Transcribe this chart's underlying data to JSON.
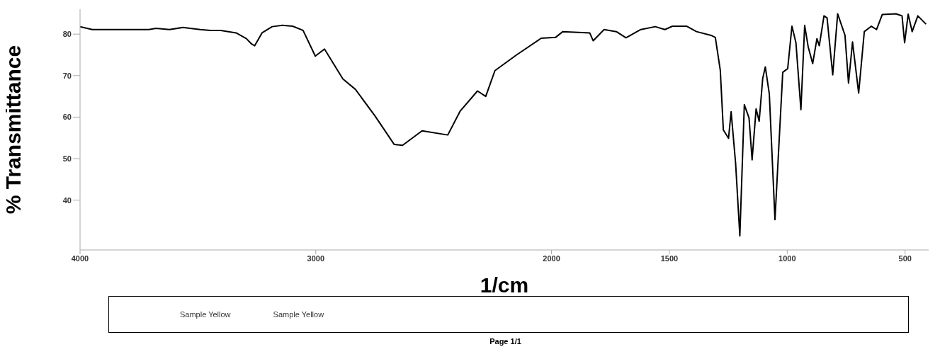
{
  "chart_data": {
    "type": "line",
    "xlabel": "1/cm",
    "ylabel": "% Transmittance",
    "x": [
      4000,
      3948,
      3708,
      3678,
      3621,
      3564,
      3490,
      3447,
      3403,
      3338,
      3294,
      3272,
      3259,
      3228,
      3185,
      3142,
      3098,
      3054,
      3002,
      2963,
      2885,
      2832,
      2749,
      2667,
      2632,
      2549,
      2440,
      2388,
      2314,
      2279,
      2240,
      2148,
      2044,
      1983,
      1952,
      1838,
      1823,
      1777,
      1725,
      1684,
      1621,
      1560,
      1519,
      1487,
      1426,
      1385,
      1323,
      1305,
      1284,
      1271,
      1249,
      1238,
      1219,
      1201,
      1182,
      1162,
      1149,
      1132,
      1119,
      1104,
      1093,
      1076,
      1052,
      1019,
      998,
      980,
      963,
      942,
      926,
      911,
      892,
      874,
      864,
      844,
      831,
      807,
      786,
      755,
      740,
      723,
      697,
      673,
      643,
      621,
      597,
      539,
      513,
      502,
      487,
      470,
      446,
      411
    ],
    "series": [
      {
        "color": "#000000",
        "values": [
          81.8,
          81.1,
          81.1,
          81.4,
          81.1,
          81.6,
          81.1,
          80.9,
          80.9,
          80.3,
          78.9,
          77.6,
          77.2,
          80.3,
          81.8,
          82.1,
          81.9,
          80.9,
          74.7,
          76.4,
          69.2,
          66.7,
          60.3,
          53.4,
          53.2,
          56.7,
          55.7,
          61.4,
          66.3,
          65.0,
          71.2,
          75.0,
          79.0,
          79.2,
          80.6,
          80.3,
          78.4,
          81.1,
          80.6,
          79.1,
          81.1,
          81.8,
          81.1,
          81.9,
          81.9,
          80.6,
          79.7,
          79.2,
          71.3,
          56.9,
          54.9,
          61.3,
          48.9,
          31.4,
          63.0,
          59.8,
          49.7,
          62.0,
          59.0,
          69.3,
          72.1,
          65.6,
          35.3,
          70.8,
          71.7,
          81.9,
          77.9,
          61.8,
          82.1,
          76.9,
          72.9,
          78.9,
          77.2,
          84.4,
          83.9,
          70.2,
          84.9,
          79.7,
          68.2,
          78.1,
          65.8,
          80.6,
          81.9,
          81.1,
          84.7,
          84.9,
          84.4,
          77.9,
          84.8,
          80.6,
          84.4,
          82.4
        ]
      }
    ],
    "xlim": [
      4000,
      400
    ],
    "xticks": [
      4000,
      3000,
      2000,
      1500,
      1000,
      500
    ],
    "ylim": [
      28,
      86
    ],
    "yticks": [
      40,
      50,
      60,
      70,
      80
    ],
    "grid": false,
    "legend": false,
    "marker": "none",
    "line_style": "solid",
    "annotations": [
      "Sample Yellow",
      "Sample Yellow",
      "Page 1/1"
    ]
  }
}
